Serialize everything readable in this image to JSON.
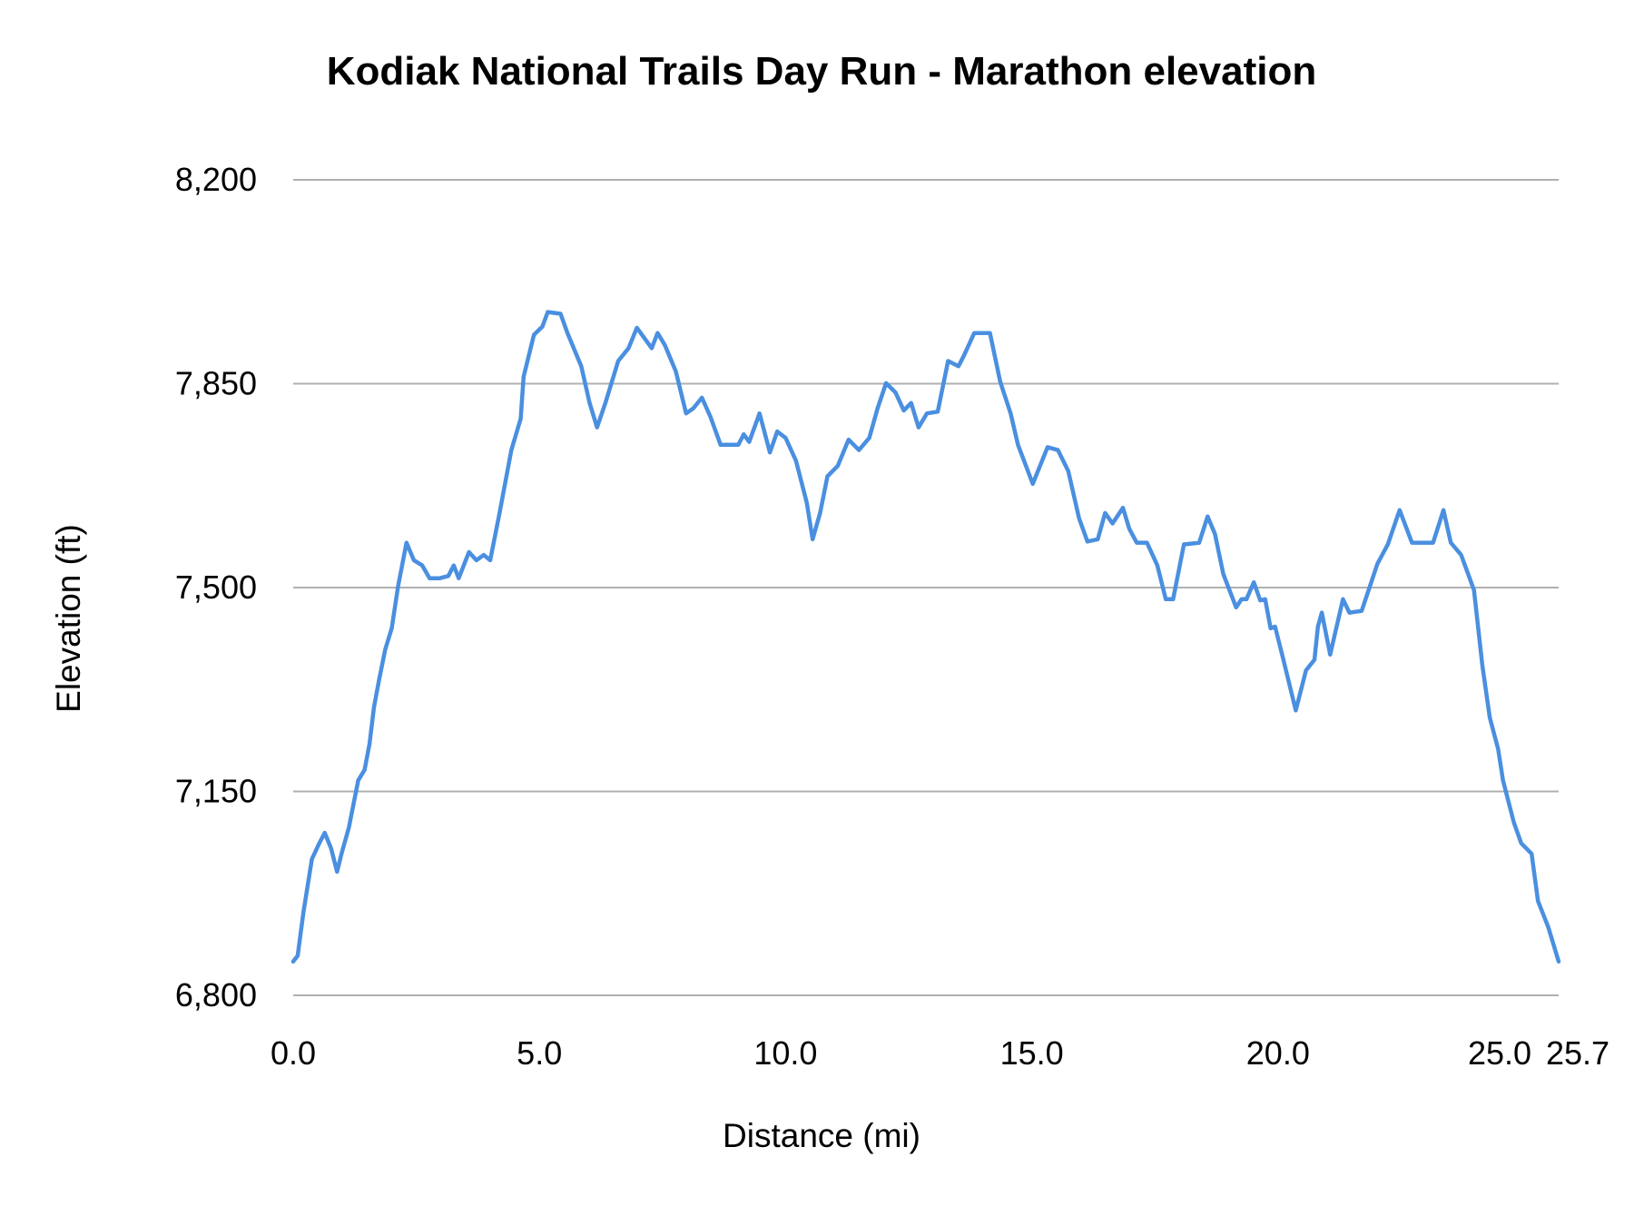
{
  "chart_data": {
    "type": "line",
    "title": "Kodiak National Trails Day Run - Marathon elevation",
    "xlabel": "Distance (mi)",
    "ylabel": "Elevation (ft)",
    "xlim": [
      0,
      25.7
    ],
    "ylim": [
      6800,
      8200
    ],
    "x_ticks": [
      0,
      5,
      10,
      15,
      20,
      25,
      25.7
    ],
    "x_tick_labels": [
      "0.0",
      "5.0",
      "10.0",
      "15.0",
      "20.0",
      "25.0",
      "25.7"
    ],
    "y_ticks": [
      6800,
      7150,
      7500,
      7850,
      8200
    ],
    "y_tick_labels": [
      "6,800",
      "7,150",
      "7,500",
      "7,850",
      "8,200"
    ],
    "grid": "horizontal",
    "legend": "none",
    "color": "#4a8fe0",
    "series": [
      {
        "x": [
          0,
          0.09,
          0.21,
          0.38,
          0.53,
          0.64,
          0.77,
          0.89,
          0.98,
          1.13,
          1.32,
          1.45,
          1.55,
          1.64,
          1.74,
          1.87,
          2.0,
          2.13,
          2.3,
          2.45,
          2.62,
          2.77,
          2.98,
          3.15,
          3.26,
          3.36,
          3.57,
          3.72,
          3.87,
          4.0,
          4.19,
          4.43,
          4.62,
          4.68,
          4.89,
          5.06,
          5.17,
          5.43,
          5.57,
          5.85,
          6.02,
          6.17,
          6.34,
          6.6,
          6.81,
          6.98,
          7.28,
          7.4,
          7.55,
          7.77,
          7.98,
          8.13,
          8.3,
          8.47,
          8.68,
          9.04,
          9.15,
          9.26,
          9.47,
          9.68,
          9.83,
          10.0,
          10.21,
          10.43,
          10.55,
          10.7,
          10.85,
          11.06,
          11.28,
          11.49,
          11.7,
          11.87,
          12.04,
          12.23,
          12.4,
          12.55,
          12.7,
          12.87,
          13.09,
          13.3,
          13.51,
          13.62,
          13.83,
          14.15,
          14.36,
          14.57,
          14.72,
          15.02,
          15.32,
          15.53,
          15.74,
          15.96,
          16.13,
          16.34,
          16.49,
          16.64,
          16.85,
          16.98,
          17.13,
          17.34,
          17.55,
          17.72,
          17.87,
          18.09,
          18.4,
          18.57,
          18.72,
          18.89,
          19.15,
          19.26,
          19.36,
          19.51,
          19.64,
          19.74,
          19.85,
          19.94,
          20.11,
          20.36,
          20.57,
          20.74,
          20.81,
          20.89,
          21.06,
          21.32,
          21.45,
          21.7,
          22.02,
          22.23,
          22.47,
          22.72,
          23.15,
          23.36,
          23.51,
          23.72,
          23.98,
          24.15,
          24.3,
          24.47,
          24.57,
          24.79,
          24.94,
          25.15,
          25.28,
          25.49,
          25.7
        ],
        "y": [
          6858,
          6868,
          6944,
          7034,
          7061,
          7079,
          7052,
          7012,
          7043,
          7088,
          7169,
          7187,
          7232,
          7295,
          7340,
          7394,
          7430,
          7502,
          7577,
          7547,
          7538,
          7516,
          7516,
          7520,
          7538,
          7516,
          7561,
          7547,
          7556,
          7547,
          7628,
          7736,
          7790,
          7862,
          7934,
          7948,
          7973,
          7970,
          7937,
          7880,
          7817,
          7775,
          7817,
          7889,
          7911,
          7946,
          7911,
          7937,
          7916,
          7871,
          7799,
          7808,
          7826,
          7794,
          7745,
          7745,
          7763,
          7750,
          7799,
          7732,
          7768,
          7757,
          7718,
          7646,
          7583,
          7628,
          7691,
          7709,
          7754,
          7736,
          7757,
          7808,
          7851,
          7835,
          7804,
          7817,
          7775,
          7799,
          7802,
          7889,
          7880,
          7898,
          7937,
          7937,
          7853,
          7799,
          7745,
          7678,
          7741,
          7736,
          7700,
          7619,
          7579,
          7583,
          7628,
          7610,
          7637,
          7601,
          7577,
          7577,
          7538,
          7480,
          7480,
          7574,
          7577,
          7622,
          7592,
          7523,
          7466,
          7480,
          7480,
          7509,
          7478,
          7480,
          7430,
          7433,
          7376,
          7289,
          7358,
          7376,
          7433,
          7457,
          7385,
          7480,
          7457,
          7460,
          7541,
          7574,
          7633,
          7577,
          7577,
          7633,
          7577,
          7556,
          7496,
          7367,
          7277,
          7223,
          7169,
          7097,
          7061,
          7043,
          6962,
          6917,
          6858
        ]
      }
    ]
  }
}
